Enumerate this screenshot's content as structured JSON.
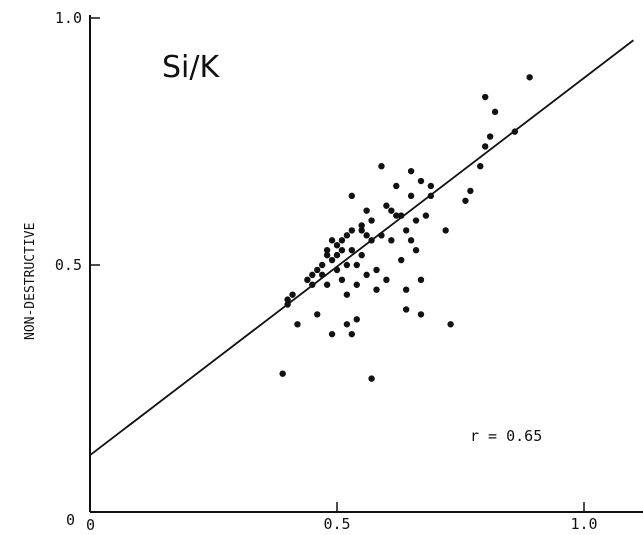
{
  "chart_data": {
    "type": "scatter",
    "title": "Si/K",
    "xlabel": "",
    "ylabel": "NON-DESTRUCTIVE",
    "xlim": [
      0,
      1.1
    ],
    "ylim": [
      0,
      1.0
    ],
    "x_ticks": [
      {
        "value": 0.5,
        "label": "0.5"
      },
      {
        "value": 1.0,
        "label": "1.0"
      }
    ],
    "y_ticks": [
      {
        "value": 0.5,
        "label": "0.5"
      },
      {
        "value": 1.0,
        "label": "1.0"
      }
    ],
    "origin_labels": {
      "x": "0",
      "y": "0"
    },
    "grid": false,
    "annotation": "r = 0.65",
    "regression_line": {
      "x": [
        0.0,
        1.1
      ],
      "y": [
        0.115,
        0.955
      ]
    },
    "points": [
      {
        "x": 0.39,
        "y": 0.28
      },
      {
        "x": 0.4,
        "y": 0.42
      },
      {
        "x": 0.4,
        "y": 0.43
      },
      {
        "x": 0.41,
        "y": 0.44
      },
      {
        "x": 0.42,
        "y": 0.38
      },
      {
        "x": 0.44,
        "y": 0.47
      },
      {
        "x": 0.45,
        "y": 0.48
      },
      {
        "x": 0.45,
        "y": 0.46
      },
      {
        "x": 0.46,
        "y": 0.49
      },
      {
        "x": 0.46,
        "y": 0.4
      },
      {
        "x": 0.47,
        "y": 0.5
      },
      {
        "x": 0.47,
        "y": 0.48
      },
      {
        "x": 0.48,
        "y": 0.52
      },
      {
        "x": 0.48,
        "y": 0.46
      },
      {
        "x": 0.48,
        "y": 0.53
      },
      {
        "x": 0.49,
        "y": 0.55
      },
      {
        "x": 0.49,
        "y": 0.51
      },
      {
        "x": 0.49,
        "y": 0.36
      },
      {
        "x": 0.5,
        "y": 0.54
      },
      {
        "x": 0.5,
        "y": 0.49
      },
      {
        "x": 0.5,
        "y": 0.52
      },
      {
        "x": 0.51,
        "y": 0.53
      },
      {
        "x": 0.51,
        "y": 0.47
      },
      {
        "x": 0.51,
        "y": 0.55
      },
      {
        "x": 0.52,
        "y": 0.5
      },
      {
        "x": 0.52,
        "y": 0.56
      },
      {
        "x": 0.52,
        "y": 0.44
      },
      {
        "x": 0.52,
        "y": 0.38
      },
      {
        "x": 0.53,
        "y": 0.53
      },
      {
        "x": 0.53,
        "y": 0.36
      },
      {
        "x": 0.53,
        "y": 0.64
      },
      {
        "x": 0.53,
        "y": 0.57
      },
      {
        "x": 0.54,
        "y": 0.5
      },
      {
        "x": 0.54,
        "y": 0.46
      },
      {
        "x": 0.54,
        "y": 0.39
      },
      {
        "x": 0.55,
        "y": 0.57
      },
      {
        "x": 0.55,
        "y": 0.52
      },
      {
        "x": 0.55,
        "y": 0.58
      },
      {
        "x": 0.56,
        "y": 0.48
      },
      {
        "x": 0.56,
        "y": 0.56
      },
      {
        "x": 0.56,
        "y": 0.61
      },
      {
        "x": 0.57,
        "y": 0.27
      },
      {
        "x": 0.57,
        "y": 0.55
      },
      {
        "x": 0.57,
        "y": 0.59
      },
      {
        "x": 0.58,
        "y": 0.49
      },
      {
        "x": 0.58,
        "y": 0.45
      },
      {
        "x": 0.59,
        "y": 0.56
      },
      {
        "x": 0.59,
        "y": 0.7
      },
      {
        "x": 0.6,
        "y": 0.47
      },
      {
        "x": 0.6,
        "y": 0.62
      },
      {
        "x": 0.61,
        "y": 0.55
      },
      {
        "x": 0.61,
        "y": 0.61
      },
      {
        "x": 0.62,
        "y": 0.6
      },
      {
        "x": 0.62,
        "y": 0.66
      },
      {
        "x": 0.63,
        "y": 0.51
      },
      {
        "x": 0.63,
        "y": 0.6
      },
      {
        "x": 0.64,
        "y": 0.45
      },
      {
        "x": 0.64,
        "y": 0.41
      },
      {
        "x": 0.64,
        "y": 0.57
      },
      {
        "x": 0.65,
        "y": 0.69
      },
      {
        "x": 0.65,
        "y": 0.64
      },
      {
        "x": 0.65,
        "y": 0.55
      },
      {
        "x": 0.66,
        "y": 0.59
      },
      {
        "x": 0.66,
        "y": 0.53
      },
      {
        "x": 0.67,
        "y": 0.67
      },
      {
        "x": 0.67,
        "y": 0.47
      },
      {
        "x": 0.67,
        "y": 0.4
      },
      {
        "x": 0.68,
        "y": 0.6
      },
      {
        "x": 0.69,
        "y": 0.66
      },
      {
        "x": 0.69,
        "y": 0.64
      },
      {
        "x": 0.72,
        "y": 0.57
      },
      {
        "x": 0.73,
        "y": 0.38
      },
      {
        "x": 0.76,
        "y": 0.63
      },
      {
        "x": 0.77,
        "y": 0.65
      },
      {
        "x": 0.79,
        "y": 0.7
      },
      {
        "x": 0.8,
        "y": 0.84
      },
      {
        "x": 0.8,
        "y": 0.74
      },
      {
        "x": 0.81,
        "y": 0.76
      },
      {
        "x": 0.82,
        "y": 0.81
      },
      {
        "x": 0.86,
        "y": 0.77
      },
      {
        "x": 0.89,
        "y": 0.88
      }
    ]
  }
}
